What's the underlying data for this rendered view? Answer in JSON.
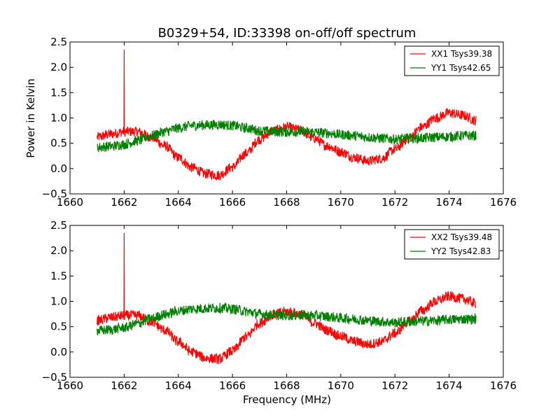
{
  "chart_data": [
    {
      "type": "line",
      "title": "B0329+54, ID:33398 on-off/off spectrum",
      "xlabel": "",
      "ylabel": "Power in Kelvin",
      "xlim": [
        1660,
        1676
      ],
      "ylim": [
        -0.5,
        2.5
      ],
      "xticks": [
        "1660",
        "1662",
        "1664",
        "1666",
        "1668",
        "1670",
        "1672",
        "1674",
        "1676"
      ],
      "yticks": [
        "−0.5",
        "0.0",
        "0.5",
        "1.0",
        "1.5",
        "2.0",
        "2.5"
      ],
      "legend_position": "top-right",
      "series": [
        {
          "name": "XX1 Tsys39.38",
          "color": "#ff0000",
          "x": [
            1661.0,
            1661.5,
            1662.0,
            1662.5,
            1663.0,
            1663.5,
            1664.0,
            1664.5,
            1665.0,
            1665.5,
            1666.0,
            1666.5,
            1667.0,
            1667.5,
            1668.0,
            1668.5,
            1669.0,
            1669.5,
            1670.0,
            1670.5,
            1671.0,
            1671.5,
            1672.0,
            1672.5,
            1673.0,
            1673.5,
            1674.0,
            1674.5,
            1675.0
          ],
          "y": [
            0.62,
            0.68,
            0.73,
            0.73,
            0.62,
            0.45,
            0.22,
            0.02,
            -0.1,
            -0.13,
            0.03,
            0.3,
            0.58,
            0.75,
            0.82,
            0.76,
            0.6,
            0.45,
            0.33,
            0.22,
            0.15,
            0.2,
            0.38,
            0.6,
            0.82,
            1.0,
            1.1,
            1.05,
            0.95
          ],
          "spike": {
            "x": 1662.0,
            "y": 2.35
          }
        },
        {
          "name": "YY1 Tsys42.65",
          "color": "#008000",
          "x": [
            1661.0,
            1661.5,
            1662.0,
            1662.5,
            1663.0,
            1663.5,
            1664.0,
            1664.5,
            1665.0,
            1665.5,
            1666.0,
            1666.5,
            1667.0,
            1667.5,
            1668.0,
            1668.5,
            1669.0,
            1669.5,
            1670.0,
            1670.5,
            1671.0,
            1671.5,
            1672.0,
            1672.5,
            1673.0,
            1673.5,
            1674.0,
            1674.5,
            1675.0
          ],
          "y": [
            0.42,
            0.44,
            0.48,
            0.55,
            0.65,
            0.73,
            0.8,
            0.85,
            0.86,
            0.87,
            0.85,
            0.8,
            0.75,
            0.73,
            0.72,
            0.73,
            0.72,
            0.7,
            0.67,
            0.65,
            0.62,
            0.6,
            0.58,
            0.6,
            0.6,
            0.62,
            0.63,
            0.65,
            0.65
          ]
        }
      ]
    },
    {
      "type": "line",
      "title": "",
      "xlabel": "Frequency (MHz)",
      "ylabel": "",
      "xlim": [
        1660,
        1676
      ],
      "ylim": [
        -0.5,
        2.5
      ],
      "xticks": [
        "1660",
        "1662",
        "1664",
        "1666",
        "1668",
        "1670",
        "1672",
        "1674",
        "1676"
      ],
      "yticks": [
        "−0.5",
        "0.0",
        "0.5",
        "1.0",
        "1.5",
        "2.0",
        "2.5"
      ],
      "legend_position": "top-right",
      "series": [
        {
          "name": "XX2 Tsys39.48",
          "color": "#ff0000",
          "x": [
            1661.0,
            1661.5,
            1662.0,
            1662.5,
            1663.0,
            1663.5,
            1664.0,
            1664.5,
            1665.0,
            1665.5,
            1666.0,
            1666.5,
            1667.0,
            1667.5,
            1668.0,
            1668.5,
            1669.0,
            1669.5,
            1670.0,
            1670.5,
            1671.0,
            1671.5,
            1672.0,
            1672.5,
            1673.0,
            1673.5,
            1674.0,
            1674.5,
            1675.0
          ],
          "y": [
            0.62,
            0.68,
            0.72,
            0.72,
            0.6,
            0.43,
            0.2,
            0.0,
            -0.12,
            -0.14,
            0.02,
            0.3,
            0.57,
            0.74,
            0.8,
            0.75,
            0.58,
            0.43,
            0.31,
            0.21,
            0.15,
            0.2,
            0.37,
            0.6,
            0.82,
            1.0,
            1.1,
            1.05,
            0.96
          ],
          "spike": {
            "x": 1662.0,
            "y": 2.35
          }
        },
        {
          "name": "YY2 Tsys42.83",
          "color": "#008000",
          "x": [
            1661.0,
            1661.5,
            1662.0,
            1662.5,
            1663.0,
            1663.5,
            1664.0,
            1664.5,
            1665.0,
            1665.5,
            1666.0,
            1666.5,
            1667.0,
            1667.5,
            1668.0,
            1668.5,
            1669.0,
            1669.5,
            1670.0,
            1670.5,
            1671.0,
            1671.5,
            1672.0,
            1672.5,
            1673.0,
            1673.5,
            1674.0,
            1674.5,
            1675.0
          ],
          "y": [
            0.42,
            0.44,
            0.48,
            0.56,
            0.66,
            0.74,
            0.81,
            0.85,
            0.86,
            0.87,
            0.85,
            0.8,
            0.75,
            0.73,
            0.72,
            0.73,
            0.72,
            0.7,
            0.67,
            0.65,
            0.62,
            0.6,
            0.58,
            0.6,
            0.61,
            0.62,
            0.64,
            0.65,
            0.65
          ]
        }
      ]
    }
  ]
}
